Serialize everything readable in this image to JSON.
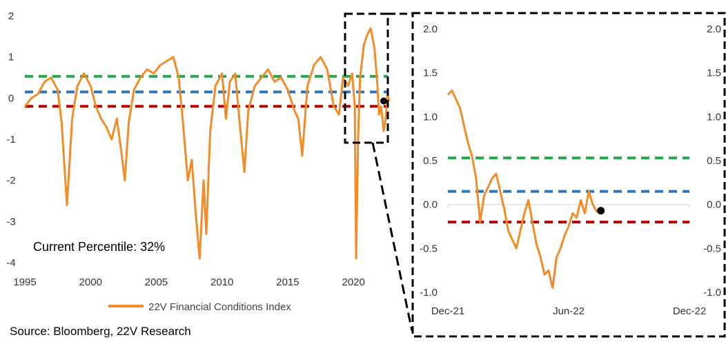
{
  "chart_data": [
    {
      "type": "line",
      "title": "",
      "xlabel": "",
      "ylabel": "",
      "xlim": [
        1995.0,
        2022.3
      ],
      "ylim": [
        -4,
        2
      ],
      "x_ticks": [
        1995,
        2000,
        2005,
        2010,
        2015,
        2020
      ],
      "y_ticks": [
        2,
        1,
        0,
        -1,
        -2,
        -3,
        -4
      ],
      "y_tick_labels": [
        "2",
        "1",
        "0",
        "-1",
        "-2",
        "-3",
        "-4"
      ],
      "grid": false,
      "series": [
        {
          "name": "22V Financial Conditions Index",
          "color": "#F28C28",
          "x": [
            1995.0,
            1995.5,
            1996.0,
            1996.5,
            1997.0,
            1997.5,
            1997.8,
            1998.2,
            1998.6,
            1999.0,
            1999.5,
            2000.0,
            2000.4,
            2000.8,
            2001.2,
            2001.6,
            2002.0,
            2002.3,
            2002.6,
            2002.9,
            2003.3,
            2003.8,
            2004.3,
            2004.8,
            2005.3,
            2005.8,
            2006.3,
            2006.7,
            2007.0,
            2007.4,
            2007.7,
            2008.0,
            2008.3,
            2008.6,
            2008.8,
            2009.1,
            2009.5,
            2010.0,
            2010.3,
            2010.6,
            2011.0,
            2011.4,
            2011.7,
            2012.0,
            2012.5,
            2013.0,
            2013.5,
            2014.0,
            2014.5,
            2015.0,
            2015.5,
            2015.8,
            2016.1,
            2016.5,
            2017.0,
            2017.5,
            2018.0,
            2018.5,
            2018.9,
            2019.2,
            2019.6,
            2019.9,
            2020.1,
            2020.2,
            2020.35,
            2020.5,
            2020.8,
            2021.0,
            2021.3,
            2021.6,
            2021.8,
            2021.95,
            2022.1,
            2022.3,
            2022.45,
            2022.6,
            2022.7
          ],
          "values": [
            -0.2,
            0.0,
            0.1,
            0.4,
            0.5,
            0.2,
            -0.6,
            -2.6,
            -0.5,
            0.3,
            0.6,
            0.3,
            -0.2,
            -0.5,
            -0.7,
            -1.0,
            -0.5,
            -1.2,
            -2.0,
            -0.6,
            0.2,
            0.5,
            0.7,
            0.6,
            0.8,
            0.9,
            1.0,
            0.5,
            -0.5,
            -2.0,
            -1.5,
            -2.8,
            -3.9,
            -2.0,
            -3.3,
            -0.8,
            0.3,
            0.6,
            -0.5,
            0.4,
            0.6,
            -0.8,
            -1.8,
            -0.3,
            0.3,
            0.5,
            0.7,
            0.4,
            0.5,
            0.2,
            -0.3,
            -0.5,
            -1.4,
            0.3,
            0.8,
            1.0,
            0.7,
            -0.2,
            -0.4,
            0.5,
            0.3,
            0.6,
            -0.2,
            -3.9,
            -1.0,
            0.5,
            1.3,
            1.5,
            1.7,
            1.2,
            0.4,
            -0.4,
            -0.2,
            -0.8,
            -0.5,
            0.1,
            -0.07
          ]
        }
      ],
      "reference_lines": [
        {
          "value": 0.53,
          "color": "#22A84A"
        },
        {
          "value": 0.15,
          "color": "#2E75B6"
        },
        {
          "value": -0.2,
          "color": "#C00000"
        }
      ],
      "current_point": {
        "x": 2022.7,
        "value": -0.07
      },
      "annotation": "Current Percentile: 32%"
    },
    {
      "type": "line",
      "title": "",
      "xlabel": "",
      "ylabel": "",
      "x_ticks": [
        "Dec-21",
        "Jun-22",
        "Dec-22"
      ],
      "xlim_months": [
        0,
        12
      ],
      "ylim": [
        -1.0,
        2.0
      ],
      "y_tick_labels": [
        "2.0",
        "1.5",
        "1.0",
        "0.5",
        "0.0",
        "-0.5",
        "-1.0"
      ],
      "y_ticks": [
        2.0,
        1.5,
        1.0,
        0.5,
        0.0,
        -0.5,
        -1.0
      ],
      "secondary_y_tick_labels": [
        "2.0",
        "1.5",
        "1.0",
        "0.5",
        "0.0",
        "-0.5",
        "-1.0"
      ],
      "grid": false,
      "series": [
        {
          "color": "#F28C28",
          "x_months": [
            0.0,
            0.2,
            0.4,
            0.6,
            0.8,
            1.0,
            1.2,
            1.4,
            1.6,
            1.8,
            2.0,
            2.2,
            2.4,
            2.6,
            2.8,
            3.0,
            3.2,
            3.4,
            3.6,
            3.8,
            4.0,
            4.2,
            4.4,
            4.6,
            4.8,
            5.0,
            5.2,
            5.4,
            5.6,
            5.8,
            6.0,
            6.2,
            6.4,
            6.6,
            6.8,
            7.0,
            7.2,
            7.4,
            7.6
          ],
          "values": [
            1.25,
            1.3,
            1.2,
            1.1,
            0.9,
            0.7,
            0.55,
            0.3,
            -0.2,
            0.1,
            0.2,
            0.3,
            0.35,
            0.15,
            -0.05,
            -0.3,
            -0.4,
            -0.5,
            -0.3,
            -0.1,
            0.05,
            -0.2,
            -0.45,
            -0.6,
            -0.8,
            -0.75,
            -0.95,
            -0.6,
            -0.5,
            -0.35,
            -0.25,
            -0.1,
            -0.15,
            0.05,
            -0.1,
            0.15,
            0.0,
            -0.08,
            -0.07
          ]
        }
      ],
      "reference_lines": [
        {
          "value": 0.53,
          "color": "#22A84A"
        },
        {
          "value": 0.15,
          "color": "#2E75B6"
        },
        {
          "value": -0.2,
          "color": "#C00000"
        }
      ],
      "current_point": {
        "x_month": 7.6,
        "value": -0.07
      }
    }
  ],
  "source": "Source: Bloomberg, 22V Research"
}
